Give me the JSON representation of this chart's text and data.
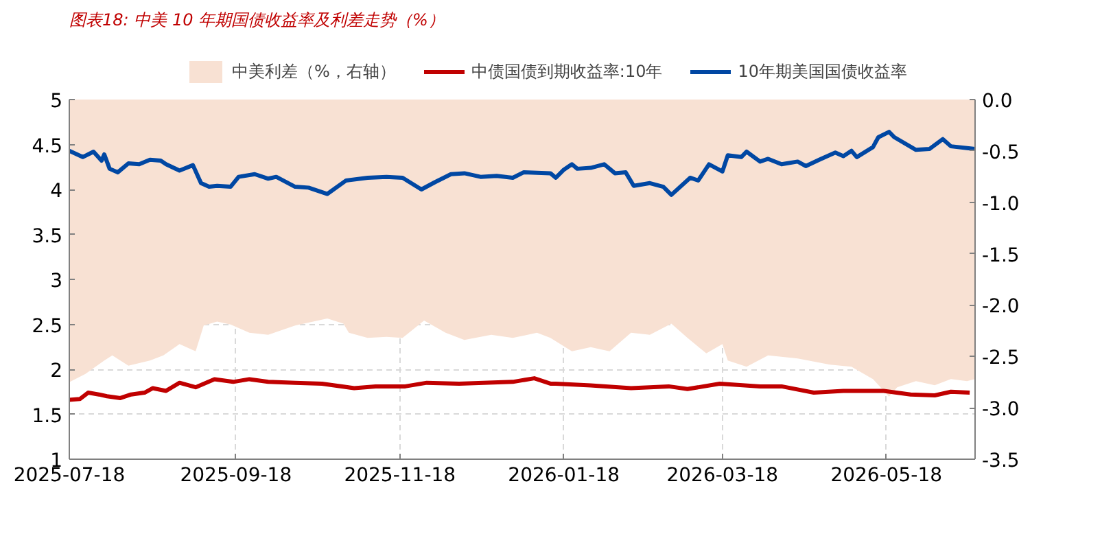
{
  "chart_data": {
    "type": "line",
    "title": "图表18: 中美 10 年期国债收益率及利差走势（%）",
    "series": [
      {
        "type": "area",
        "name": "中美利差（%，右轴）",
        "color": "#f8e1d3",
        "axis": "y2",
        "x": [
          "2025-07-18",
          "2025-07-24",
          "2025-07-31",
          "2025-08-03",
          "2025-08-09",
          "2025-08-17",
          "2025-08-22",
          "2025-08-28",
          "2025-09-03",
          "2025-09-06",
          "2025-09-11",
          "2025-09-16",
          "2025-09-23",
          "2025-09-30",
          "2025-10-10",
          "2025-10-22",
          "2025-10-28",
          "2025-10-30",
          "2025-11-06",
          "2025-11-13",
          "2025-11-19",
          "2025-11-27",
          "2025-12-05",
          "2025-12-12",
          "2025-12-22",
          "2025-12-30",
          "2026-01-08",
          "2026-01-13",
          "2026-01-21",
          "2026-01-28",
          "2026-02-04",
          "2026-02-12",
          "2026-02-19",
          "2026-02-27",
          "2026-03-05",
          "2026-03-12",
          "2026-03-18",
          "2026-03-20",
          "2026-03-27",
          "2026-04-04",
          "2026-04-15",
          "2026-04-27",
          "2026-05-05",
          "2026-05-13",
          "2026-05-19",
          "2026-05-22",
          "2026-05-29",
          "2026-06-05",
          "2026-06-11",
          "2026-06-17",
          "2026-06-20"
        ],
        "values": [
          -2.75,
          -2.67,
          -2.54,
          -2.49,
          -2.59,
          -2.54,
          -2.49,
          -2.38,
          -2.45,
          -2.2,
          -2.16,
          -2.19,
          -2.27,
          -2.29,
          -2.2,
          -2.13,
          -2.18,
          -2.27,
          -2.32,
          -2.31,
          -2.32,
          -2.15,
          -2.27,
          -2.34,
          -2.29,
          -2.32,
          -2.27,
          -2.32,
          -2.45,
          -2.41,
          -2.45,
          -2.27,
          -2.29,
          -2.18,
          -2.32,
          -2.47,
          -2.38,
          -2.54,
          -2.6,
          -2.49,
          -2.52,
          -2.58,
          -2.6,
          -2.72,
          -2.89,
          -2.8,
          -2.74,
          -2.78,
          -2.72,
          -2.74,
          -2.72
        ]
      },
      {
        "type": "line",
        "name": "中债国债到期收益率:10年",
        "color": "#c00000",
        "x": [
          "2025-07-18",
          "2025-07-22",
          "2025-07-25",
          "2025-07-29",
          "2025-08-01",
          "2025-08-06",
          "2025-08-10",
          "2025-08-15",
          "2025-08-18",
          "2025-08-23",
          "2025-08-28",
          "2025-09-03",
          "2025-09-10",
          "2025-09-17",
          "2025-09-23",
          "2025-09-30",
          "2025-10-10",
          "2025-10-20",
          "2025-11-01",
          "2025-11-09",
          "2025-11-20",
          "2025-11-28",
          "2025-12-10",
          "2025-12-30",
          "2026-01-07",
          "2026-01-13",
          "2026-01-15",
          "2026-01-28",
          "2026-02-12",
          "2026-02-26",
          "2026-03-05",
          "2026-03-17",
          "2026-04-01",
          "2026-04-09",
          "2026-04-21",
          "2026-05-02",
          "2026-05-17",
          "2026-05-27",
          "2026-06-05",
          "2026-06-11",
          "2026-06-18"
        ],
        "values": [
          1.66,
          1.67,
          1.74,
          1.72,
          1.7,
          1.68,
          1.72,
          1.74,
          1.79,
          1.76,
          1.85,
          1.8,
          1.89,
          1.86,
          1.89,
          1.86,
          1.85,
          1.84,
          1.79,
          1.81,
          1.81,
          1.85,
          1.84,
          1.86,
          1.9,
          1.84,
          1.84,
          1.82,
          1.79,
          1.81,
          1.78,
          1.84,
          1.81,
          1.81,
          1.74,
          1.76,
          1.76,
          1.72,
          1.71,
          1.75,
          1.74
        ]
      },
      {
        "type": "line",
        "name": "10年期美国国债收益率",
        "color": "#0047a3",
        "x": [
          "2025-07-18",
          "2025-07-23",
          "2025-07-27",
          "2025-07-30",
          "2025-07-31",
          "2025-08-02",
          "2025-08-05",
          "2025-08-09",
          "2025-08-13",
          "2025-08-17",
          "2025-08-21",
          "2025-08-23",
          "2025-08-28",
          "2025-09-02",
          "2025-09-05",
          "2025-09-08",
          "2025-09-11",
          "2025-09-16",
          "2025-09-19",
          "2025-09-25",
          "2025-09-30",
          "2025-10-03",
          "2025-10-10",
          "2025-10-15",
          "2025-10-22",
          "2025-10-29",
          "2025-11-06",
          "2025-11-13",
          "2025-11-19",
          "2025-11-26",
          "2025-12-01",
          "2025-12-07",
          "2025-12-12",
          "2025-12-18",
          "2025-12-24",
          "2025-12-30",
          "2026-01-03",
          "2026-01-13",
          "2026-01-15",
          "2026-01-18",
          "2026-01-21",
          "2026-01-23",
          "2026-01-28",
          "2026-02-02",
          "2026-02-06",
          "2026-02-10",
          "2026-02-13",
          "2026-02-19",
          "2026-02-24",
          "2026-02-27",
          "2026-03-06",
          "2026-03-09",
          "2026-03-13",
          "2026-03-18",
          "2026-03-20",
          "2026-03-25",
          "2026-03-27",
          "2026-04-01",
          "2026-04-04",
          "2026-04-09",
          "2026-04-15",
          "2026-04-18",
          "2026-04-23",
          "2026-04-29",
          "2026-05-02",
          "2026-05-05",
          "2026-05-07",
          "2026-05-13",
          "2026-05-15",
          "2026-05-19",
          "2026-05-21",
          "2026-05-29",
          "2026-06-03",
          "2026-06-08",
          "2026-06-11",
          "2026-06-17",
          "2026-06-20"
        ],
        "values": [
          4.43,
          4.36,
          4.42,
          4.32,
          4.39,
          4.23,
          4.19,
          4.29,
          4.28,
          4.33,
          4.32,
          4.28,
          4.21,
          4.27,
          4.07,
          4.03,
          4.04,
          4.03,
          4.14,
          4.17,
          4.12,
          4.14,
          4.03,
          4.02,
          3.95,
          4.1,
          4.13,
          4.14,
          4.13,
          4.0,
          4.08,
          4.17,
          4.18,
          4.14,
          4.15,
          4.13,
          4.19,
          4.18,
          4.13,
          4.22,
          4.28,
          4.23,
          4.24,
          4.28,
          4.18,
          4.19,
          4.04,
          4.07,
          4.03,
          3.94,
          4.13,
          4.1,
          4.28,
          4.2,
          4.38,
          4.36,
          4.42,
          4.31,
          4.34,
          4.28,
          4.31,
          4.26,
          4.33,
          4.41,
          4.37,
          4.43,
          4.36,
          4.47,
          4.58,
          4.64,
          4.58,
          4.44,
          4.45,
          4.56,
          4.48,
          4.46,
          4.45
        ]
      }
    ],
    "xlim": [
      "2025-07-18",
      "2026-06-20"
    ],
    "xticks": [
      "2025-07-18",
      "2025-09-18",
      "2025-11-18",
      "2026-01-18",
      "2026-03-18",
      "2026-05-18"
    ],
    "ylim": [
      1,
      5
    ],
    "yticks": [
      1,
      1.5,
      2,
      2.5,
      3,
      3.5,
      4,
      4.5,
      5
    ],
    "y2lim": [
      -3.5,
      0
    ],
    "y2ticks": [
      {
        "value": -3.5,
        "label": "-3.5"
      },
      {
        "value": -3,
        "label": "-3.0"
      },
      {
        "value": -2.5,
        "label": "-2.5"
      },
      {
        "value": -2,
        "label": "-2.0"
      },
      {
        "value": -1.5,
        "label": "-1.5"
      },
      {
        "value": -1,
        "label": "-1.0"
      },
      {
        "value": -0.5,
        "label": "-0.5"
      },
      {
        "value": 0,
        "label": "0.0"
      }
    ],
    "grid": true,
    "legend": "top"
  }
}
